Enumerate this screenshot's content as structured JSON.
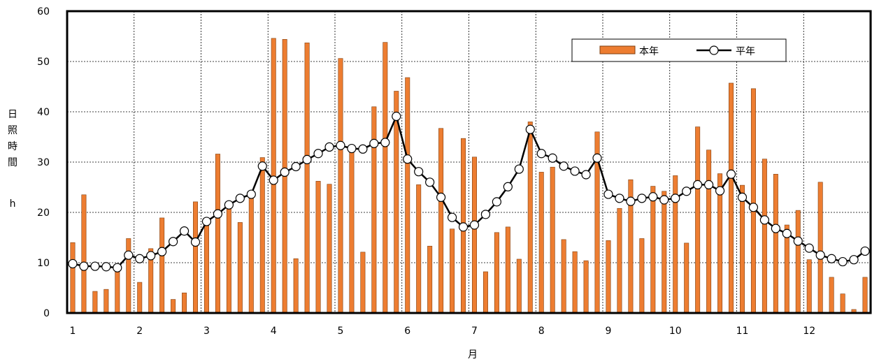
{
  "chart_data": {
    "type": "bar",
    "xlabel": "月",
    "ylabel": "日照時間",
    "yunit": "h",
    "ylim": [
      0,
      60
    ],
    "yticks": [
      0,
      10,
      20,
      30,
      40,
      50,
      60
    ],
    "months": [
      "1",
      "2",
      "3",
      "4",
      "5",
      "6",
      "7",
      "8",
      "9",
      "10",
      "11",
      "12"
    ],
    "periods_per_month": 6,
    "grid": true,
    "legend_position": "top-right",
    "colors": {
      "bar": "#ED7D31",
      "bar_edge": "#7F3F0F",
      "line": "#000000",
      "marker_fill": "#ffffff"
    },
    "series": [
      {
        "name": "本年",
        "type": "bar",
        "values": [
          14.0,
          23.5,
          4.3,
          4.7,
          8.5,
          14.8,
          6.1,
          12.8,
          18.9,
          2.7,
          4.0,
          22.1,
          17.4,
          31.6,
          20.9,
          18.0,
          23.6,
          30.9,
          54.6,
          54.4,
          10.8,
          53.7,
          26.2,
          25.6,
          50.6,
          32.4,
          12.1,
          41.0,
          53.8,
          44.1,
          46.8,
          25.5,
          13.3,
          36.7,
          16.7,
          34.7,
          31.0,
          8.2,
          16.0,
          17.1,
          10.7,
          38.0,
          28.0,
          29.0,
          14.6,
          12.2,
          10.4,
          36.0,
          14.4,
          20.8,
          26.5,
          14.8,
          25.2,
          24.2,
          27.3,
          13.9,
          37.0,
          32.4,
          27.7,
          45.7,
          25.4,
          44.6,
          30.6,
          27.6,
          17.5,
          20.4,
          10.6,
          26.0,
          7.1,
          3.8,
          0.7,
          7.1
        ]
      },
      {
        "name": "平年",
        "type": "line",
        "values": [
          9.8,
          9.3,
          9.3,
          9.2,
          9.0,
          11.5,
          10.8,
          11.4,
          12.2,
          14.2,
          16.3,
          14.1,
          18.2,
          19.7,
          21.5,
          22.8,
          23.6,
          29.2,
          26.4,
          28.0,
          29.1,
          30.5,
          31.7,
          33.0,
          33.3,
          32.7,
          32.6,
          33.7,
          33.9,
          39.1,
          30.6,
          28.1,
          26.0,
          23.0,
          19.0,
          17.1,
          17.5,
          19.6,
          22.1,
          25.1,
          28.6,
          36.5,
          31.7,
          30.8,
          29.2,
          28.2,
          27.5,
          30.8,
          23.6,
          22.8,
          22.2,
          22.8,
          23.1,
          22.5,
          22.8,
          24.2,
          25.5,
          25.5,
          24.3,
          27.6,
          23.0,
          21.0,
          18.5,
          16.8,
          15.8,
          14.3,
          12.9,
          11.5,
          10.8,
          10.2,
          10.6,
          12.3
        ]
      }
    ]
  }
}
